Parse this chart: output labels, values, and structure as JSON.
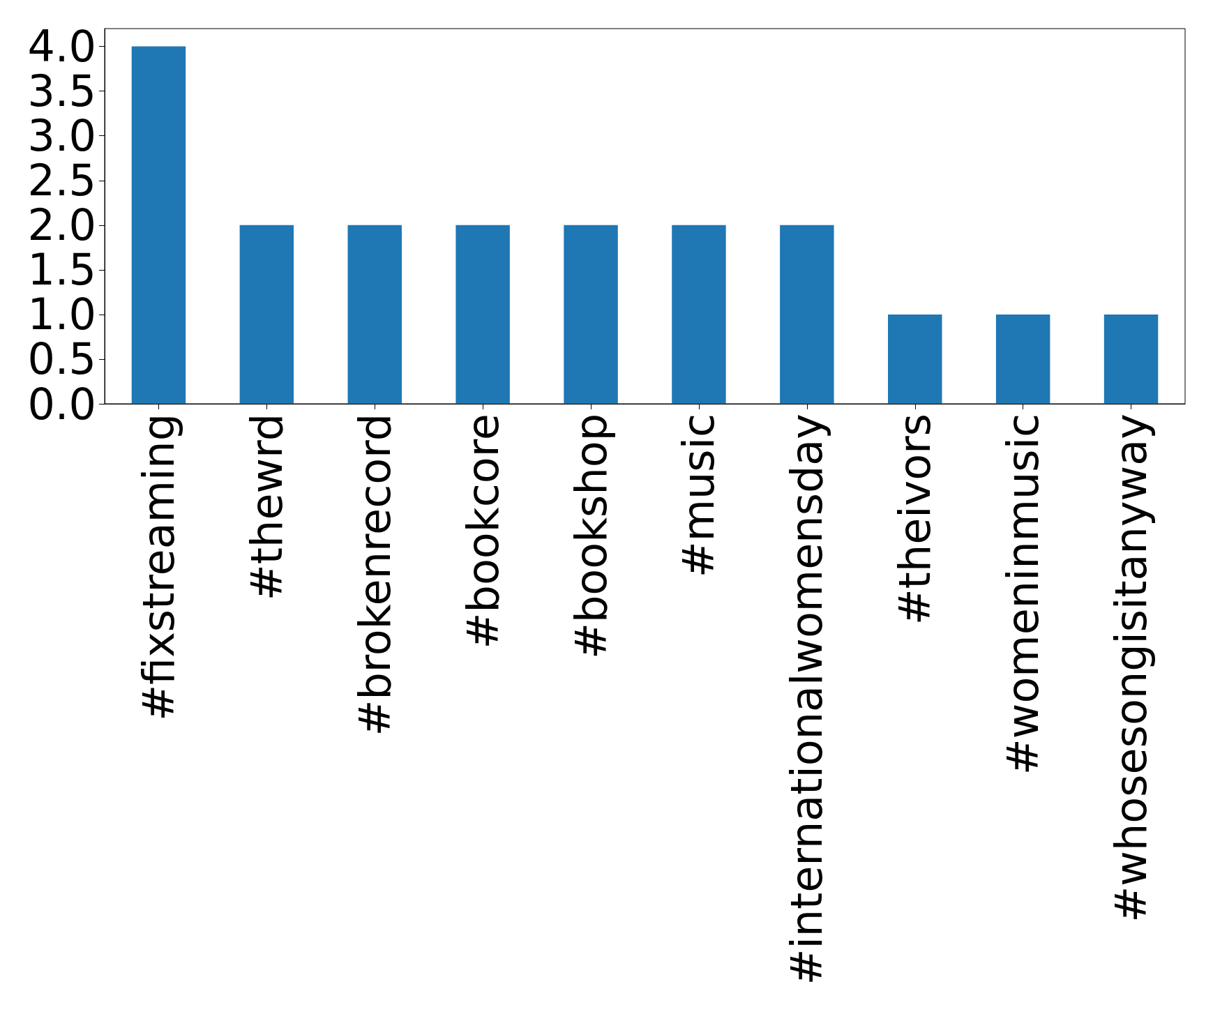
{
  "chart_data": {
    "type": "bar",
    "categories": [
      "#fixstreaming",
      "#thewrd",
      "#brokenrecord",
      "#bookcore",
      "#bookshop",
      "#music",
      "#internationalwomensday",
      "#theivors",
      "#womeninmusic",
      "#whosesongisitanyway"
    ],
    "values": [
      4,
      2,
      2,
      2,
      2,
      2,
      2,
      1,
      1,
      1
    ],
    "color": "#1f77b4",
    "ylim": [
      0,
      4.2
    ],
    "yticks": [
      {
        "value": 0,
        "label": "0.0"
      },
      {
        "value": 0.5,
        "label": "0.5"
      },
      {
        "value": 1,
        "label": "1.0"
      },
      {
        "value": 1.5,
        "label": "1.5"
      },
      {
        "value": 2,
        "label": "2.0"
      },
      {
        "value": 2.5,
        "label": "2.5"
      },
      {
        "value": 3,
        "label": "3.0"
      },
      {
        "value": 3.5,
        "label": "3.5"
      },
      {
        "value": 4,
        "label": "4.0"
      }
    ],
    "grid": false
  }
}
